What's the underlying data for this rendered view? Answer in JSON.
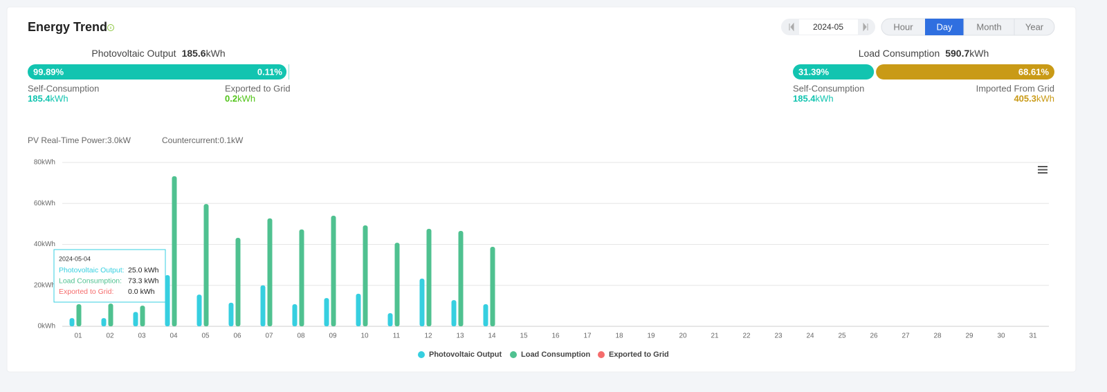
{
  "header": {
    "title": "Energy Trend",
    "date": "2024-05",
    "tabs": [
      "Hour",
      "Day",
      "Month",
      "Year"
    ],
    "active_tab": "Day"
  },
  "pv_summary": {
    "label": "Photovoltaic Output",
    "total": 185.6,
    "unit": "kWh",
    "segments": [
      {
        "value": 99.89,
        "label": "99.89%",
        "name": "Self-Consumption",
        "amount": 185.4,
        "unit": "kWh",
        "bar_color": "#12c4b0",
        "text_color": "#12c4b0"
      },
      {
        "value": 0.11,
        "label": "0.11%",
        "name": "Exported to Grid",
        "amount": 0.2,
        "unit": "kWh",
        "bar_color": "#12c4b0",
        "text_color": "#52c41a"
      }
    ]
  },
  "load_summary": {
    "label": "Load Consumption",
    "total": 590.7,
    "unit": "kWh",
    "segments": [
      {
        "value": 31.39,
        "label": "31.39%",
        "name": "Self-Consumption",
        "amount": 185.4,
        "unit": "kWh",
        "bar_color": "#12c4b0",
        "text_color": "#12c4b0"
      },
      {
        "value": 68.61,
        "label": "68.61%",
        "name": "Imported From Grid",
        "amount": 405.3,
        "unit": "kWh",
        "bar_color": "#c99a16",
        "text_color": "#c99a16"
      }
    ]
  },
  "realtime": [
    "PV Real-Time Power:3.0kW",
    "Countercurrent:0.1kW"
  ],
  "chart_data": {
    "type": "bar",
    "categories": [
      "01",
      "02",
      "03",
      "04",
      "05",
      "06",
      "07",
      "08",
      "09",
      "10",
      "11",
      "12",
      "13",
      "14",
      "15",
      "16",
      "17",
      "18",
      "19",
      "20",
      "21",
      "22",
      "23",
      "24",
      "25",
      "26",
      "27",
      "28",
      "29",
      "30",
      "31"
    ],
    "series": [
      {
        "name": "Photovoltaic Output",
        "color": "#36cfe0",
        "values": [
          4,
          4,
          7,
          25,
          15.5,
          11.5,
          20,
          10.8,
          13.8,
          15.9,
          6.4,
          23.3,
          12.8,
          10.8,
          null,
          null,
          null,
          null,
          null,
          null,
          null,
          null,
          null,
          null,
          null,
          null,
          null,
          null,
          null,
          null,
          null
        ]
      },
      {
        "name": "Load Consumption",
        "color": "#4fc190",
        "values": [
          10.8,
          11.1,
          10.1,
          73.3,
          59.7,
          43.2,
          52.7,
          47.3,
          54,
          49.3,
          40.8,
          47.6,
          46.6,
          38.8,
          null,
          null,
          null,
          null,
          null,
          null,
          null,
          null,
          null,
          null,
          null,
          null,
          null,
          null,
          null,
          null,
          null
        ]
      },
      {
        "name": "Exported to Grid",
        "color": "#f56c6c",
        "values": [
          0,
          0,
          0,
          0,
          0,
          0,
          0,
          0,
          0,
          0,
          0,
          0,
          0,
          0,
          null,
          null,
          null,
          null,
          null,
          null,
          null,
          null,
          null,
          null,
          null,
          null,
          null,
          null,
          null,
          null,
          null
        ]
      }
    ],
    "ylim": [
      0,
      80
    ],
    "yticks": [
      {
        "value": 0,
        "label": "0kWh"
      },
      {
        "value": 20,
        "label": "20kWh"
      },
      {
        "value": 40,
        "label": "40kWh"
      },
      {
        "value": 60,
        "label": "60kWh"
      },
      {
        "value": 80,
        "label": "80kWh"
      }
    ],
    "grid": true,
    "legend": "bottom"
  },
  "tooltip": {
    "title": "2024-05-04",
    "rows": [
      {
        "name": "Photovoltaic Output:",
        "value": "25.0",
        "unit": "kWh"
      },
      {
        "name": "Load Consumption:",
        "value": "73.3",
        "unit": "kWh"
      },
      {
        "name": "Exported to Grid:",
        "value": "0.0",
        "unit": "kWh"
      }
    ]
  }
}
